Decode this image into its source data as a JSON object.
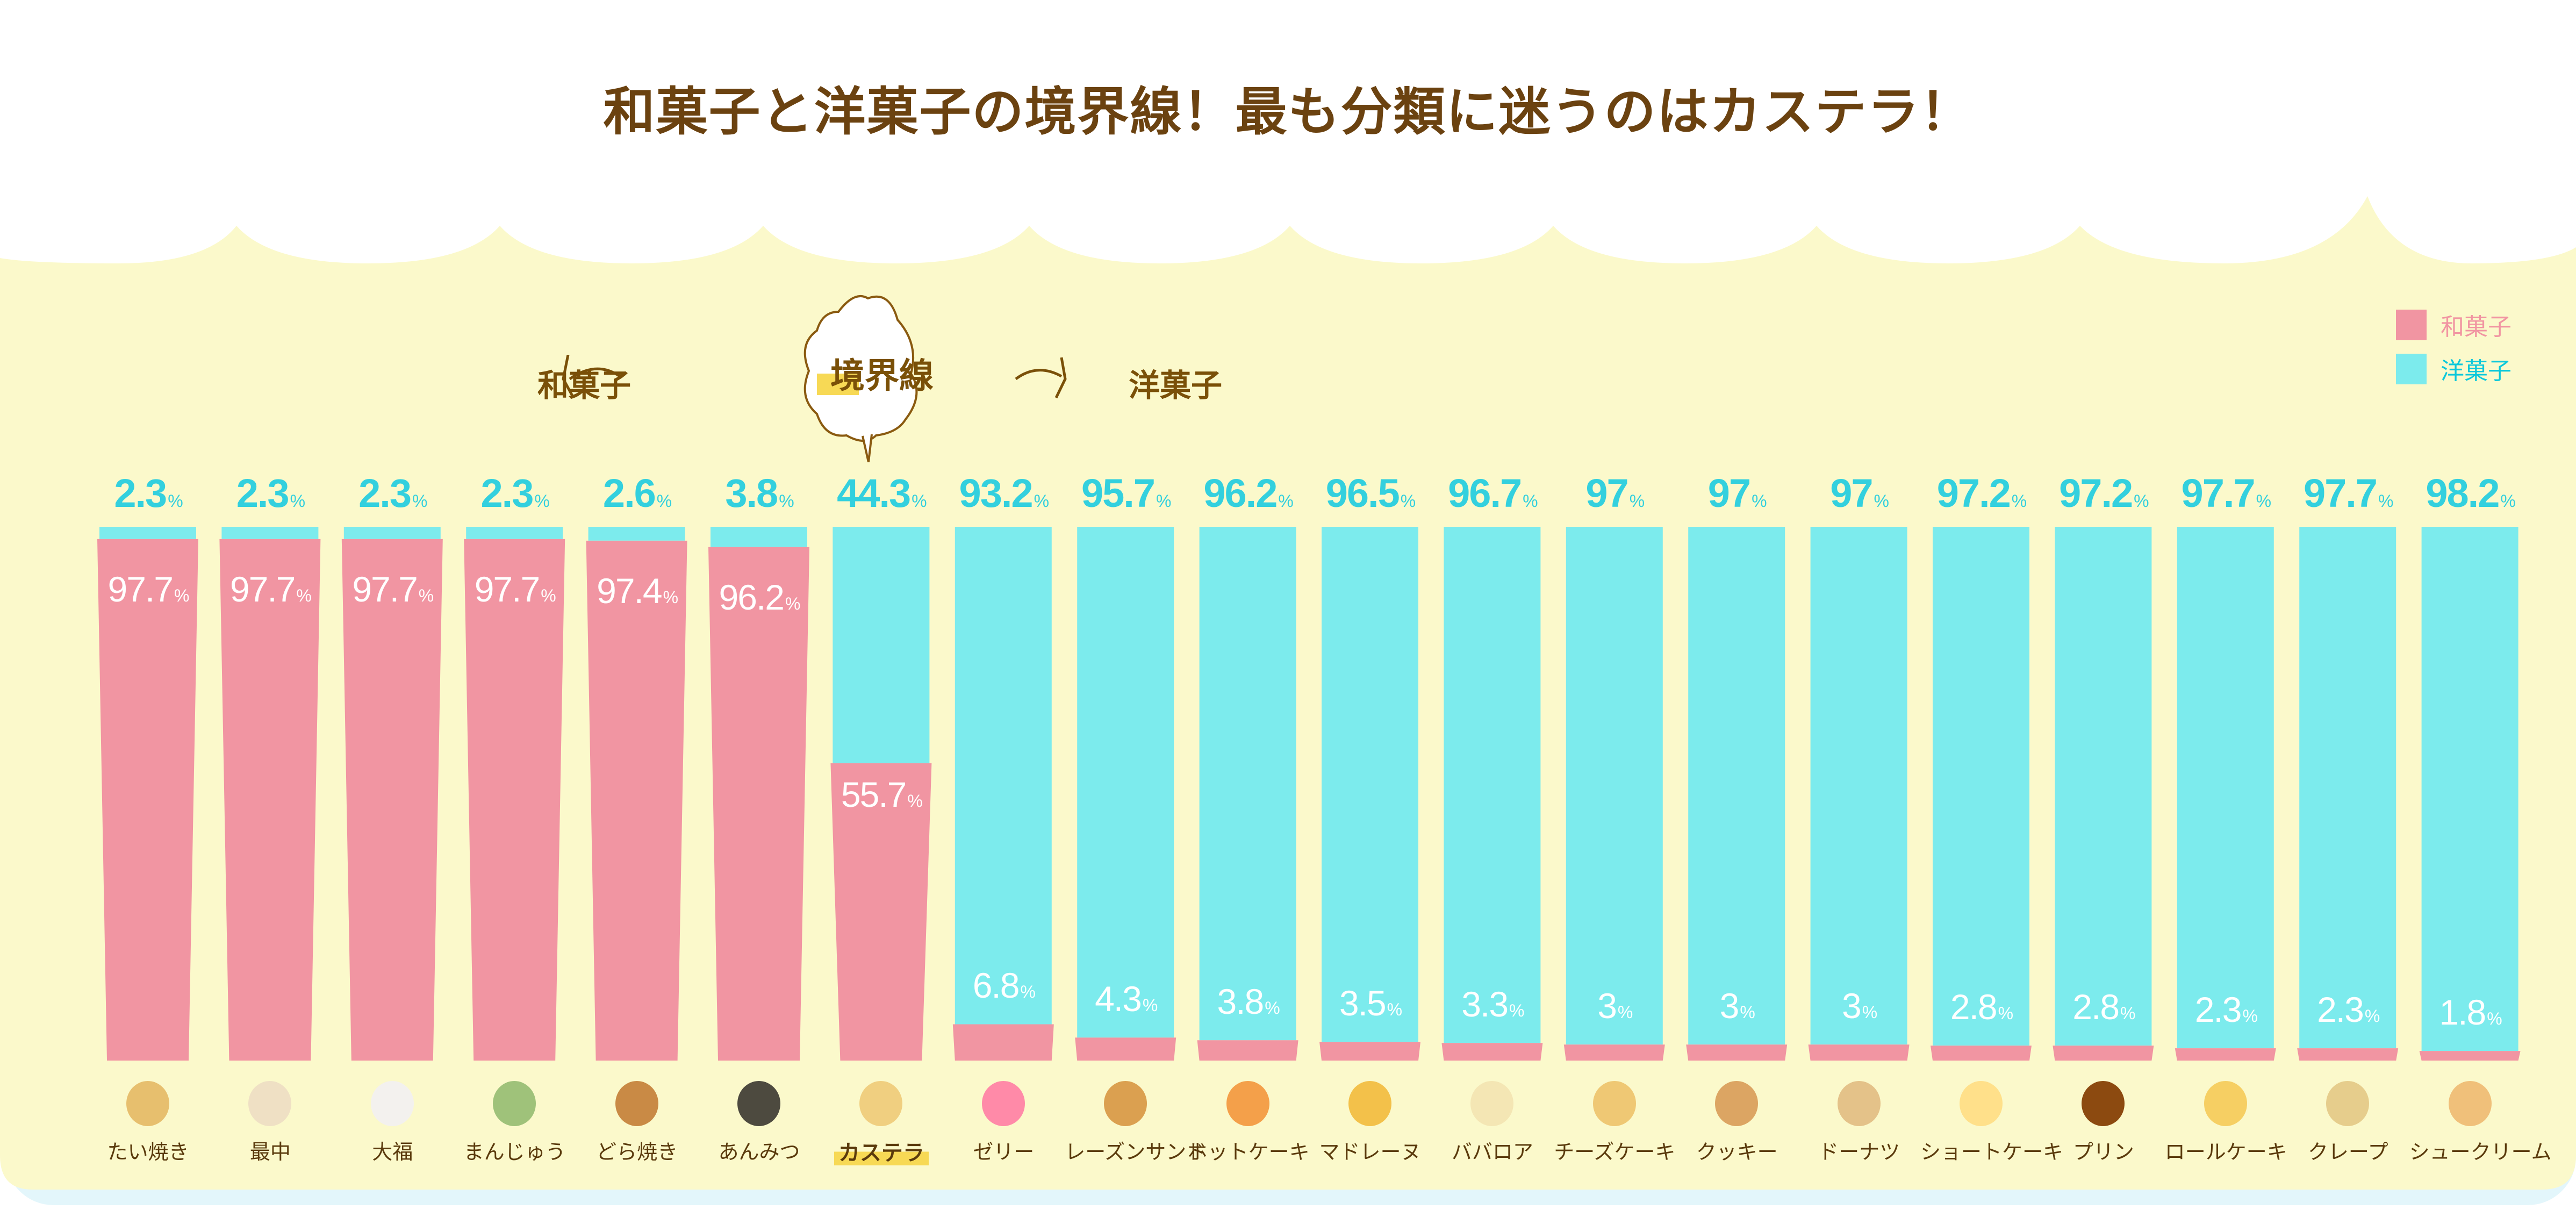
{
  "title": "和菓子と洋菓子の境界線！最も分類に迷うのはカステラ！",
  "header": {
    "left_label": "和菓子",
    "center_label": "境界線",
    "right_label": "洋菓子",
    "left_arrow_icon": "curved-arrow-left-icon",
    "right_arrow_icon": "curved-arrow-right-icon",
    "bubble_icon": "thought-cloud-icon"
  },
  "colors": {
    "wagashi": "#f195a2",
    "yogashi": "#7cebed",
    "yogashi_text": "#33d0de",
    "panel": "#fbf9cb",
    "shadow": "#e3f6fb",
    "title": "#6b4210",
    "highlight": "#f7d955"
  },
  "chart_data": {
    "type": "bar",
    "stacked": true,
    "title": "和菓子と洋菓子の境界線！最も分類に迷うのはカステラ！",
    "xlabel": "",
    "ylabel": "",
    "ylim": [
      0,
      100
    ],
    "unit": "%",
    "legend": {
      "position": "top-right",
      "entries": [
        "和菓子",
        "洋菓子"
      ]
    },
    "categories": [
      "たい焼き",
      "最中",
      "大福",
      "まんじゅう",
      "どら焼き",
      "あんみつ",
      "カステラ",
      "ゼリー",
      "レーズンサンド",
      "ホットケーキ",
      "マドレーヌ",
      "ババロア",
      "チーズケーキ",
      "クッキー",
      "ドーナツ",
      "ショートケーキ",
      "プリン",
      "ロールケーキ",
      "クレープ",
      "シュークリーム"
    ],
    "highlight_category": "カステラ",
    "series": [
      {
        "name": "和菓子",
        "values": [
          97.7,
          97.7,
          97.7,
          97.7,
          97.4,
          96.2,
          55.7,
          6.8,
          4.3,
          3.8,
          3.5,
          3.3,
          3,
          3,
          3,
          2.8,
          2.8,
          2.3,
          2.3,
          1.8
        ]
      },
      {
        "name": "洋菓子",
        "values": [
          2.3,
          2.3,
          2.3,
          2.3,
          2.6,
          3.8,
          44.3,
          93.2,
          95.7,
          96.2,
          96.5,
          96.7,
          97,
          97,
          97,
          97.2,
          97.2,
          97.7,
          97.7,
          98.2
        ]
      }
    ],
    "label_top": [
      "2.3",
      "2.3",
      "2.3",
      "2.3",
      "2.6",
      "3.8",
      "44.3",
      "93.2",
      "95.7",
      "96.2",
      "96.5",
      "96.7",
      "97",
      "97",
      "97",
      "97.2",
      "97.2",
      "97.7",
      "97.7",
      "98.2"
    ],
    "label_inner": [
      "97.7",
      "97.7",
      "97.7",
      "97.7",
      "97.4",
      "96.2",
      "55.7",
      "6.8",
      "4.3",
      "3.8",
      "3.5",
      "3.3",
      "3",
      "3",
      "3",
      "2.8",
      "2.8",
      "2.3",
      "2.3",
      "1.8"
    ],
    "icons": [
      "taiyaki-icon",
      "monaka-icon",
      "daifuku-icon",
      "manju-icon",
      "dorayaki-icon",
      "anmitsu-icon",
      "castella-icon",
      "jelly-icon",
      "raisin-sandwich-icon",
      "pancake-icon",
      "madeleine-icon",
      "bavarois-icon",
      "cheesecake-icon",
      "cookie-icon",
      "donut-icon",
      "shortcake-icon",
      "pudding-icon",
      "roll-cake-icon",
      "crepe-icon",
      "cream-puff-icon"
    ]
  }
}
